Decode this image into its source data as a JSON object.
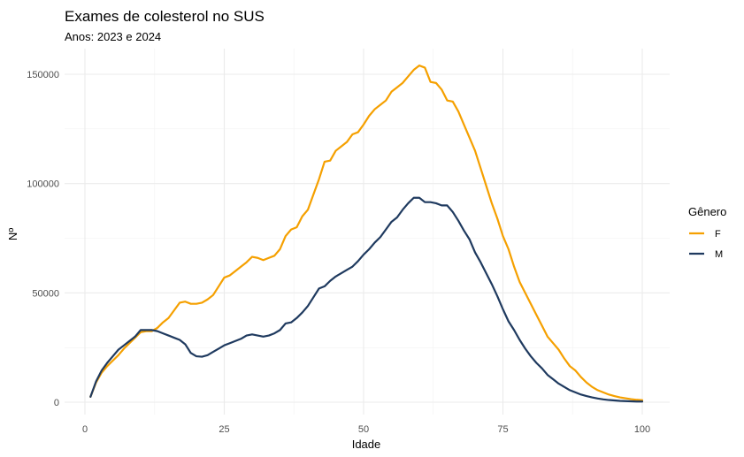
{
  "chart_data": {
    "type": "line",
    "title": "Exames de colesterol no SUS",
    "subtitle": "Anos: 2023 e 2024",
    "xlabel": "Idade",
    "ylabel": "Nº",
    "xlim": [
      0,
      100
    ],
    "ylim": [
      0,
      155000
    ],
    "x_ticks": [
      0,
      25,
      50,
      75,
      100
    ],
    "y_ticks": [
      0,
      50000,
      100000,
      150000
    ],
    "x_tick_labels": [
      "0",
      "25",
      "50",
      "75",
      "100"
    ],
    "y_tick_labels": [
      "0",
      "50000",
      "100000",
      "150000"
    ],
    "grid": true,
    "legend": {
      "title": "Gênero",
      "position": "right"
    },
    "series": [
      {
        "name": "F",
        "color": "#F5A000",
        "points": [
          [
            1,
            2500
          ],
          [
            2,
            9000
          ],
          [
            3,
            13500
          ],
          [
            4,
            16500
          ],
          [
            5,
            19000
          ],
          [
            6,
            21500
          ],
          [
            7,
            24500
          ],
          [
            8,
            27000
          ],
          [
            9,
            29500
          ],
          [
            10,
            32000
          ],
          [
            11,
            32500
          ],
          [
            12,
            32500
          ],
          [
            13,
            34000
          ],
          [
            14,
            36500
          ],
          [
            15,
            38500
          ],
          [
            16,
            42000
          ],
          [
            17,
            45500
          ],
          [
            18,
            46000
          ],
          [
            19,
            45000
          ],
          [
            20,
            45000
          ],
          [
            21,
            45500
          ],
          [
            22,
            47000
          ],
          [
            23,
            49000
          ],
          [
            24,
            53000
          ],
          [
            25,
            57000
          ],
          [
            26,
            58000
          ],
          [
            27,
            60000
          ],
          [
            28,
            62000
          ],
          [
            29,
            64000
          ],
          [
            30,
            66500
          ],
          [
            31,
            66000
          ],
          [
            32,
            65000
          ],
          [
            33,
            66000
          ],
          [
            34,
            67000
          ],
          [
            35,
            70000
          ],
          [
            36,
            76000
          ],
          [
            37,
            79000
          ],
          [
            38,
            80000
          ],
          [
            39,
            85000
          ],
          [
            40,
            88000
          ],
          [
            41,
            95000
          ],
          [
            42,
            102000
          ],
          [
            43,
            110000
          ],
          [
            44,
            110500
          ],
          [
            45,
            115000
          ],
          [
            46,
            117000
          ],
          [
            47,
            119000
          ],
          [
            48,
            122500
          ],
          [
            49,
            123500
          ],
          [
            50,
            127000
          ],
          [
            51,
            131000
          ],
          [
            52,
            134000
          ],
          [
            53,
            136000
          ],
          [
            54,
            138000
          ],
          [
            55,
            142000
          ],
          [
            56,
            144000
          ],
          [
            57,
            146000
          ],
          [
            58,
            149000
          ],
          [
            59,
            152000
          ],
          [
            60,
            154000
          ],
          [
            61,
            153000
          ],
          [
            62,
            146500
          ],
          [
            63,
            146000
          ],
          [
            64,
            143000
          ],
          [
            65,
            138000
          ],
          [
            66,
            137500
          ],
          [
            67,
            133000
          ],
          [
            68,
            127000
          ],
          [
            69,
            121000
          ],
          [
            70,
            115000
          ],
          [
            71,
            107000
          ],
          [
            72,
            99000
          ],
          [
            73,
            91000
          ],
          [
            74,
            84000
          ],
          [
            75,
            76000
          ],
          [
            76,
            70000
          ],
          [
            77,
            62000
          ],
          [
            78,
            55000
          ],
          [
            79,
            50000
          ],
          [
            80,
            45000
          ],
          [
            81,
            40000
          ],
          [
            82,
            35000
          ],
          [
            83,
            30000
          ],
          [
            84,
            27000
          ],
          [
            85,
            24000
          ],
          [
            86,
            20000
          ],
          [
            87,
            16500
          ],
          [
            88,
            14500
          ],
          [
            89,
            11500
          ],
          [
            90,
            9000
          ],
          [
            91,
            7000
          ],
          [
            92,
            5500
          ],
          [
            93,
            4500
          ],
          [
            94,
            3500
          ],
          [
            95,
            2800
          ],
          [
            96,
            2200
          ],
          [
            97,
            1800
          ],
          [
            98,
            1400
          ],
          [
            99,
            1100
          ],
          [
            100,
            900
          ]
        ]
      },
      {
        "name": "M",
        "color": "#1F3A5F",
        "points": [
          [
            1,
            2500
          ],
          [
            2,
            9500
          ],
          [
            3,
            14500
          ],
          [
            4,
            18000
          ],
          [
            5,
            21000
          ],
          [
            6,
            24000
          ],
          [
            7,
            26000
          ],
          [
            8,
            28000
          ],
          [
            9,
            30000
          ],
          [
            10,
            33000
          ],
          [
            11,
            33000
          ],
          [
            12,
            33000
          ],
          [
            13,
            32500
          ],
          [
            14,
            31500
          ],
          [
            15,
            30500
          ],
          [
            16,
            29500
          ],
          [
            17,
            28500
          ],
          [
            18,
            26500
          ],
          [
            19,
            22500
          ],
          [
            20,
            21000
          ],
          [
            21,
            20800
          ],
          [
            22,
            21500
          ],
          [
            23,
            23000
          ],
          [
            24,
            24500
          ],
          [
            25,
            26000
          ],
          [
            26,
            27000
          ],
          [
            27,
            28000
          ],
          [
            28,
            29000
          ],
          [
            29,
            30500
          ],
          [
            30,
            31000
          ],
          [
            31,
            30500
          ],
          [
            32,
            30000
          ],
          [
            33,
            30500
          ],
          [
            34,
            31500
          ],
          [
            35,
            33000
          ],
          [
            36,
            36000
          ],
          [
            37,
            36500
          ],
          [
            38,
            38500
          ],
          [
            39,
            41000
          ],
          [
            40,
            44000
          ],
          [
            41,
            48000
          ],
          [
            42,
            52000
          ],
          [
            43,
            53000
          ],
          [
            44,
            55500
          ],
          [
            45,
            57500
          ],
          [
            46,
            59000
          ],
          [
            47,
            60500
          ],
          [
            48,
            62000
          ],
          [
            49,
            64500
          ],
          [
            50,
            67500
          ],
          [
            51,
            70000
          ],
          [
            52,
            73000
          ],
          [
            53,
            75500
          ],
          [
            54,
            79000
          ],
          [
            55,
            82500
          ],
          [
            56,
            84500
          ],
          [
            57,
            88000
          ],
          [
            58,
            91000
          ],
          [
            59,
            93500
          ],
          [
            60,
            93500
          ],
          [
            61,
            91500
          ],
          [
            62,
            91500
          ],
          [
            63,
            91000
          ],
          [
            64,
            90000
          ],
          [
            65,
            90000
          ],
          [
            66,
            87000
          ],
          [
            67,
            83000
          ],
          [
            68,
            78500
          ],
          [
            69,
            74500
          ],
          [
            70,
            68500
          ],
          [
            71,
            64000
          ],
          [
            72,
            59000
          ],
          [
            73,
            54000
          ],
          [
            74,
            48500
          ],
          [
            75,
            42500
          ],
          [
            76,
            37000
          ],
          [
            77,
            33000
          ],
          [
            78,
            28500
          ],
          [
            79,
            24500
          ],
          [
            80,
            21000
          ],
          [
            81,
            18000
          ],
          [
            82,
            15500
          ],
          [
            83,
            12500
          ],
          [
            84,
            10500
          ],
          [
            85,
            8500
          ],
          [
            86,
            7000
          ],
          [
            87,
            5500
          ],
          [
            88,
            4500
          ],
          [
            89,
            3500
          ],
          [
            90,
            2800
          ],
          [
            91,
            2200
          ],
          [
            92,
            1700
          ],
          [
            93,
            1300
          ],
          [
            94,
            1000
          ],
          [
            95,
            800
          ],
          [
            96,
            600
          ],
          [
            97,
            500
          ],
          [
            98,
            400
          ],
          [
            99,
            300
          ],
          [
            100,
            300
          ]
        ]
      }
    ]
  }
}
